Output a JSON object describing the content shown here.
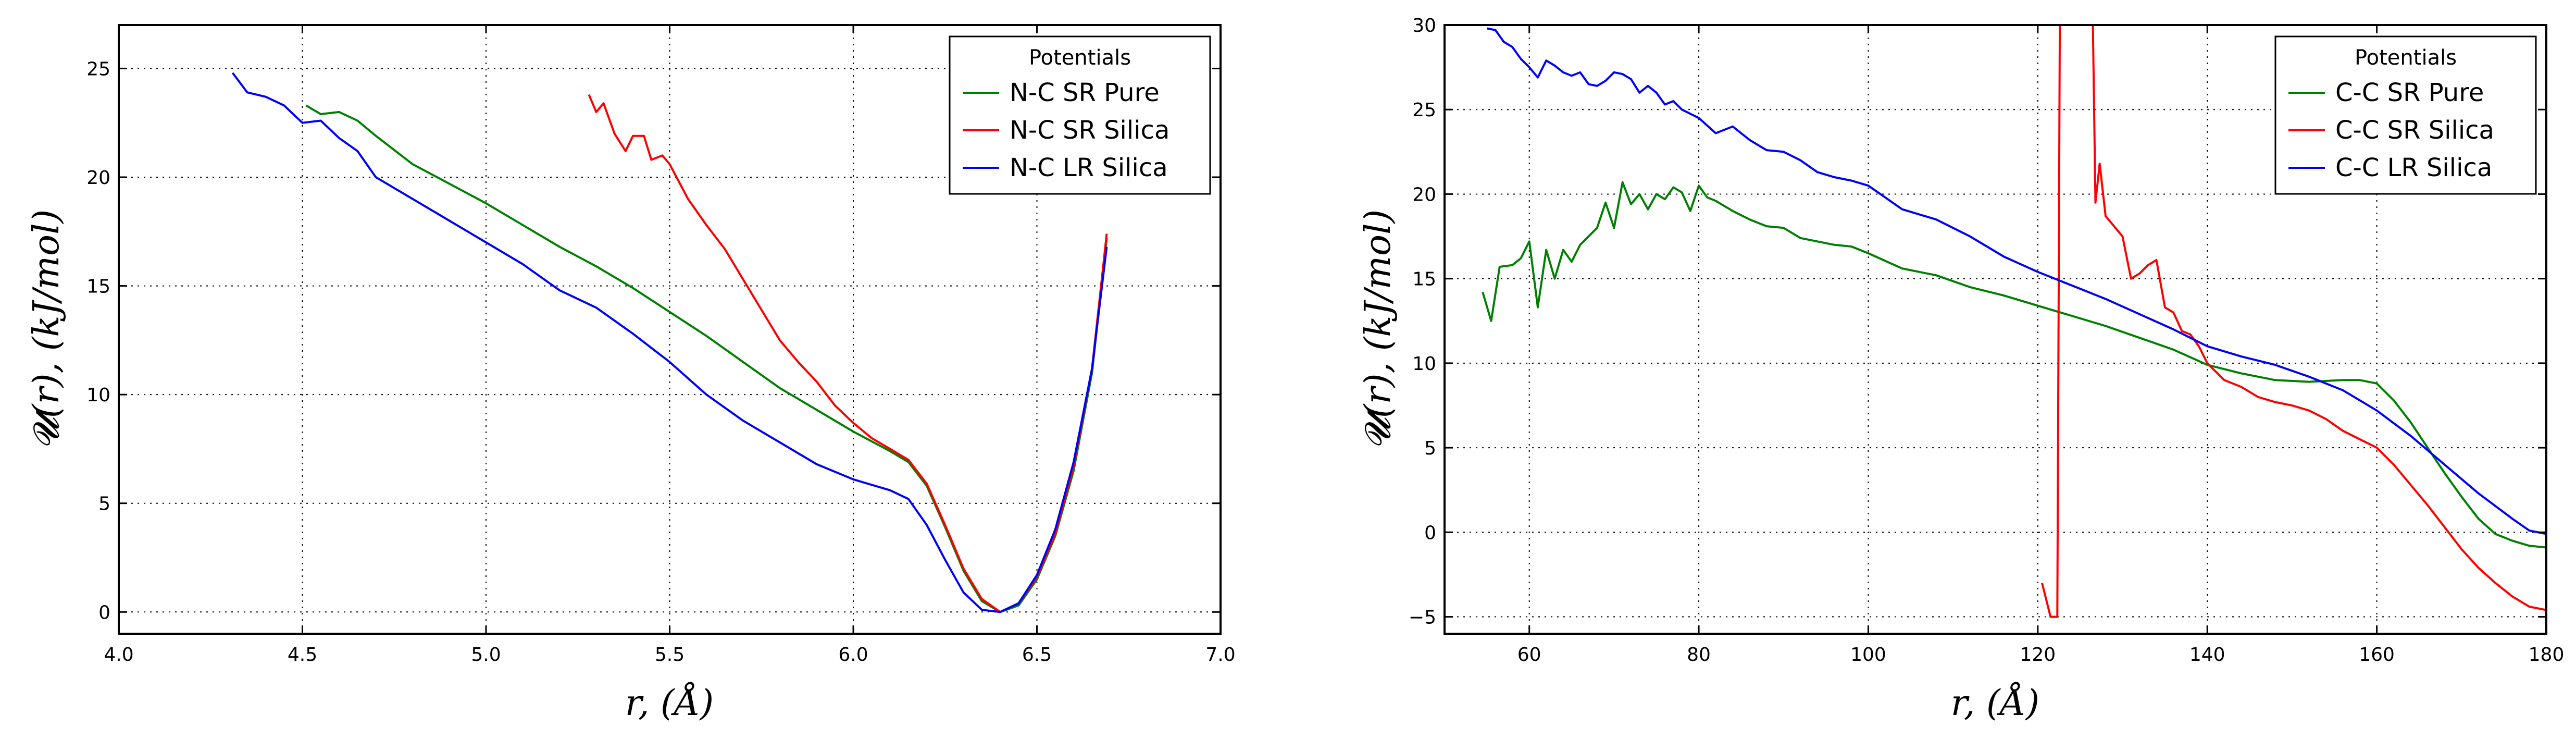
{
  "chart_data": [
    {
      "type": "line",
      "xlabel": "r, (Å)",
      "ylabel": "𝓤(r), (kJ/mol)",
      "xlim": [
        4.0,
        7.0
      ],
      "ylim": [
        -1.0,
        27.0
      ],
      "xticks": [
        4.0,
        4.5,
        5.0,
        5.5,
        6.0,
        6.5,
        7.0
      ],
      "xtick_labels": [
        "4.0",
        "4.5",
        "5.0",
        "5.5",
        "6.0",
        "6.5",
        "7.0"
      ],
      "yticks": [
        0,
        5,
        10,
        15,
        20,
        25
      ],
      "ytick_labels": [
        "0",
        "5",
        "10",
        "15",
        "20",
        "25"
      ],
      "grid": true,
      "legend_title": "Potentials",
      "legend_position": "top-right",
      "series": [
        {
          "name": "N-C SR Pure",
          "color": "#008000",
          "x": [
            4.51,
            4.55,
            4.6,
            4.65,
            4.7,
            4.8,
            4.9,
            5.0,
            5.1,
            5.2,
            5.3,
            5.4,
            5.5,
            5.6,
            5.7,
            5.8,
            5.9,
            6.0,
            6.1,
            6.15,
            6.2,
            6.25,
            6.3,
            6.35,
            6.4,
            6.45,
            6.5,
            6.55,
            6.6,
            6.65,
            6.69
          ],
          "y": [
            23.3,
            22.9,
            23.0,
            22.6,
            21.9,
            20.6,
            19.7,
            18.8,
            17.8,
            16.8,
            15.9,
            14.9,
            13.8,
            12.7,
            11.5,
            10.3,
            9.3,
            8.3,
            7.4,
            6.9,
            5.8,
            3.9,
            1.9,
            0.5,
            0.0,
            0.3,
            1.5,
            3.5,
            6.5,
            11.0,
            17.2
          ]
        },
        {
          "name": "N-C SR Silica",
          "color": "#ff0000",
          "x": [
            5.28,
            5.3,
            5.32,
            5.35,
            5.38,
            5.4,
            5.43,
            5.45,
            5.48,
            5.5,
            5.55,
            5.6,
            5.65,
            5.7,
            5.75,
            5.8,
            5.85,
            5.9,
            5.95,
            6.0,
            6.05,
            6.1,
            6.15,
            6.2,
            6.25,
            6.3,
            6.35,
            6.4,
            6.45,
            6.5,
            6.55,
            6.6,
            6.65,
            6.69
          ],
          "y": [
            23.8,
            23.0,
            23.4,
            22.0,
            21.2,
            21.9,
            21.9,
            20.8,
            21.0,
            20.6,
            19.0,
            17.8,
            16.7,
            15.3,
            13.9,
            12.5,
            11.5,
            10.6,
            9.5,
            8.7,
            8.0,
            7.5,
            7.0,
            5.9,
            4.0,
            2.0,
            0.6,
            0.0,
            0.4,
            1.6,
            3.6,
            6.7,
            11.2,
            17.4
          ]
        },
        {
          "name": "N-C LR Silica",
          "color": "#0000ff",
          "x": [
            4.31,
            4.35,
            4.4,
            4.45,
            4.5,
            4.55,
            4.6,
            4.65,
            4.7,
            4.8,
            4.9,
            5.0,
            5.1,
            5.2,
            5.3,
            5.4,
            5.5,
            5.6,
            5.7,
            5.8,
            5.9,
            6.0,
            6.1,
            6.15,
            6.2,
            6.25,
            6.3,
            6.35,
            6.4,
            6.45,
            6.5,
            6.55,
            6.6,
            6.65,
            6.69
          ],
          "y": [
            24.8,
            23.9,
            23.7,
            23.3,
            22.5,
            22.6,
            21.8,
            21.2,
            20.0,
            19.0,
            18.0,
            17.0,
            16.0,
            14.8,
            14.0,
            12.8,
            11.5,
            10.0,
            8.8,
            7.8,
            6.8,
            6.1,
            5.6,
            5.2,
            4.0,
            2.4,
            0.9,
            0.1,
            0.0,
            0.4,
            1.7,
            3.8,
            6.9,
            11.2,
            16.8
          ]
        }
      ]
    },
    {
      "type": "line",
      "xlabel": "r, (Å)",
      "ylabel": "𝓤(r), (kJ/mol)",
      "xlim": [
        50,
        180
      ],
      "ylim": [
        -6,
        30
      ],
      "xticks": [
        60,
        80,
        100,
        120,
        140,
        160,
        180
      ],
      "xtick_labels": [
        "60",
        "80",
        "100",
        "120",
        "140",
        "160",
        "180"
      ],
      "yticks": [
        -5,
        0,
        5,
        10,
        15,
        20,
        25,
        30
      ],
      "ytick_labels": [
        "−5",
        "0",
        "5",
        "10",
        "15",
        "20",
        "25",
        "30"
      ],
      "grid": true,
      "legend_title": "Potentials",
      "legend_position": "top-right",
      "series": [
        {
          "name": "C-C SR Pure",
          "color": "#008000",
          "x": [
            54.5,
            55.5,
            56.5,
            58,
            59,
            60,
            61,
            62,
            63,
            64,
            65,
            66,
            67,
            68,
            69,
            70,
            71,
            72,
            73,
            74,
            75,
            76,
            77,
            78,
            79,
            80,
            81,
            82,
            84,
            86,
            88,
            90,
            92,
            94,
            96,
            98,
            100,
            104,
            108,
            112,
            116,
            120,
            124,
            128,
            132,
            136,
            140,
            144,
            148,
            152,
            156,
            158,
            160,
            162,
            164,
            166,
            168,
            170,
            172,
            174,
            176,
            178,
            180
          ],
          "y": [
            14.2,
            12.5,
            15.7,
            15.8,
            16.2,
            17.2,
            13.3,
            16.7,
            15.0,
            16.7,
            16.0,
            17.0,
            17.5,
            18.0,
            19.5,
            18.0,
            20.7,
            19.4,
            20.0,
            19.1,
            20.0,
            19.7,
            20.4,
            20.1,
            19.0,
            20.5,
            19.8,
            19.6,
            19.0,
            18.5,
            18.1,
            18.0,
            17.4,
            17.2,
            17.0,
            16.9,
            16.5,
            15.6,
            15.2,
            14.5,
            14.0,
            13.4,
            12.8,
            12.2,
            11.5,
            10.8,
            9.9,
            9.4,
            9.0,
            8.9,
            9.0,
            9.0,
            8.8,
            7.8,
            6.5,
            5.0,
            3.5,
            2.1,
            0.8,
            -0.1,
            -0.5,
            -0.8,
            -0.9
          ]
        },
        {
          "name": "C-C SR Silica",
          "color": "#ff0000",
          "x": [
            120.5,
            121.5,
            122.3,
            122.6,
            122.8,
            126.5,
            126.8,
            127.3,
            128,
            130,
            131,
            132,
            133,
            134,
            135,
            136,
            137,
            138,
            139,
            140,
            142,
            144,
            146,
            148,
            150,
            152,
            154,
            156,
            158,
            160,
            162,
            164,
            166,
            168,
            170,
            172,
            174,
            176,
            178,
            180
          ],
          "y": [
            -3.0,
            -5.0,
            -5.0,
            30,
            30,
            30,
            19.5,
            21.8,
            18.7,
            17.5,
            15.0,
            15.3,
            15.8,
            16.1,
            13.3,
            13.0,
            11.9,
            11.7,
            11.0,
            10.0,
            9.0,
            8.6,
            8.0,
            7.7,
            7.5,
            7.2,
            6.7,
            6.0,
            5.5,
            5.0,
            4.0,
            2.8,
            1.6,
            0.3,
            -1.0,
            -2.1,
            -3.0,
            -3.8,
            -4.4,
            -4.6
          ]
        },
        {
          "name": "C-C LR Silica",
          "color": "#0000ff",
          "x": [
            55,
            56,
            57,
            58,
            59,
            60,
            61,
            62,
            63,
            64,
            65,
            66,
            67,
            68,
            69,
            70,
            71,
            72,
            73,
            74,
            75,
            76,
            77,
            78,
            80,
            82,
            84,
            86,
            88,
            90,
            92,
            94,
            96,
            98,
            100,
            104,
            108,
            112,
            116,
            120,
            124,
            128,
            132,
            136,
            140,
            144,
            148,
            152,
            156,
            160,
            164,
            168,
            172,
            176,
            178,
            180
          ],
          "y": [
            29.8,
            29.7,
            29.0,
            28.7,
            28.0,
            27.5,
            26.9,
            27.9,
            27.6,
            27.2,
            27.0,
            27.2,
            26.5,
            26.4,
            26.7,
            27.2,
            27.1,
            26.8,
            26.0,
            26.4,
            26.0,
            25.3,
            25.5,
            25.0,
            24.5,
            23.6,
            24.0,
            23.2,
            22.6,
            22.5,
            22.0,
            21.3,
            21.0,
            20.8,
            20.5,
            19.1,
            18.5,
            17.5,
            16.3,
            15.4,
            14.6,
            13.8,
            12.9,
            12.0,
            11.0,
            10.4,
            9.9,
            9.2,
            8.4,
            7.2,
            5.7,
            4.0,
            2.3,
            0.8,
            0.1,
            -0.1
          ]
        }
      ]
    }
  ]
}
